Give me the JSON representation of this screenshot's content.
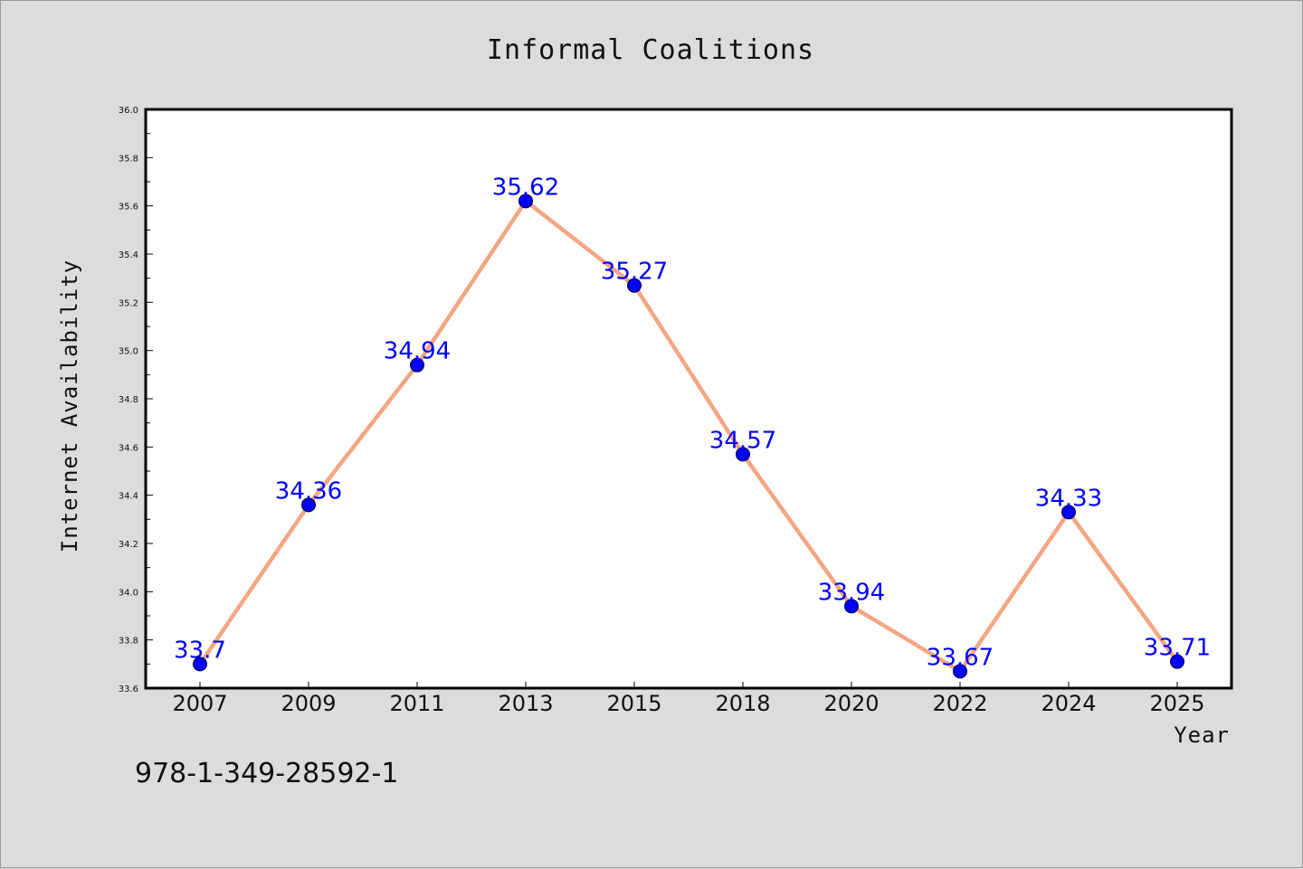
{
  "chart_data": {
    "type": "line",
    "title": "Informal Coalitions",
    "xlabel": "Year",
    "ylabel": "Internet Availability",
    "categories": [
      "2007",
      "2009",
      "2011",
      "2013",
      "2015",
      "2018",
      "2020",
      "2022",
      "2024",
      "2025"
    ],
    "series": [
      {
        "values": [
          33.7,
          34.36,
          34.94,
          35.62,
          35.27,
          34.57,
          33.94,
          33.67,
          34.33,
          33.71
        ],
        "labels": [
          "33.7",
          "34.36",
          "34.94",
          "35.62",
          "35.27",
          "34.57",
          "33.94",
          "33.67",
          "34.33",
          "33.71"
        ],
        "line_color": "#f4a582",
        "marker_color": "#0000ff"
      }
    ],
    "ylim": [
      33.6,
      36.0
    ],
    "yticks": [
      "33.6",
      "33.8",
      "34.0",
      "34.2",
      "34.4",
      "34.6",
      "34.8",
      "35.0",
      "35.2",
      "35.4",
      "35.6",
      "35.8",
      "36.0"
    ],
    "grid": false,
    "legend": "none"
  },
  "footer": {
    "isbn": "978-1-349-28592-1"
  },
  "colors": {
    "background": "#dcdcdc",
    "plot_background": "#ffffff",
    "line": "#f4a582",
    "marker": "#0000ff",
    "data_label": "#0000ff"
  }
}
